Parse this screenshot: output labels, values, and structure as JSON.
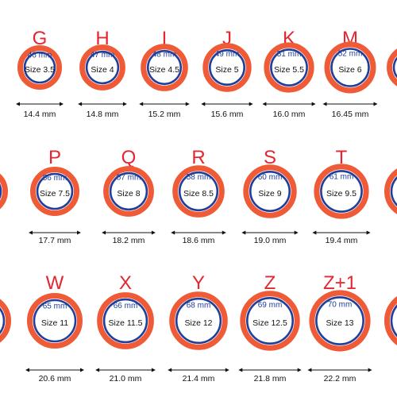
{
  "rows": [
    {
      "rings": [
        {
          "letter": "G",
          "circumference": "46 mm",
          "size": "Size 3.5",
          "diameter": "14.4 mm"
        },
        {
          "letter": "H",
          "circumference": "47 mm",
          "size": "Size 4",
          "diameter": "14.8 mm"
        },
        {
          "letter": "I",
          "circumference": "48 mm",
          "size": "Size 4.5",
          "diameter": "15.2 mm"
        },
        {
          "letter": "J",
          "circumference": "49 mm",
          "size": "Size 5",
          "diameter": "15.6 mm"
        },
        {
          "letter": "K",
          "circumference": "51 mm",
          "size": "Size 5.5",
          "diameter": "16.0 mm"
        },
        {
          "letter": "M",
          "circumference": "52 mm",
          "size": "Size 6",
          "diameter": "16.45 mm"
        }
      ]
    },
    {
      "rings": [
        {
          "letter": "P",
          "circumference": "56 mm",
          "size": "Size 7.5",
          "diameter": "17.7 mm"
        },
        {
          "letter": "Q",
          "circumference": "57 mm",
          "size": "Size 8",
          "diameter": "18.2 mm"
        },
        {
          "letter": "R",
          "circumference": "58 mm",
          "size": "Size 8.5",
          "diameter": "18.6 mm"
        },
        {
          "letter": "S",
          "circumference": "60 mm",
          "size": "Size 9",
          "diameter": "19.0 mm"
        },
        {
          "letter": "T",
          "circumference": "61 mm",
          "size": "Size 9.5",
          "diameter": "19.4 mm"
        }
      ]
    },
    {
      "rings": [
        {
          "letter": "W",
          "circumference": "65 mm",
          "size": "Size 11",
          "diameter": "20.6 mm"
        },
        {
          "letter": "X",
          "circumference": "66 mm",
          "size": "Size 11.5",
          "diameter": "21.0 mm"
        },
        {
          "letter": "Y",
          "circumference": "68 mm",
          "size": "Size 12",
          "diameter": "21.4 mm"
        },
        {
          "letter": "Z",
          "circumference": "69 mm",
          "size": "Size 12.5",
          "diameter": "21.8 mm"
        },
        {
          "letter": "Z+1",
          "circumference": "70 mm",
          "size": "Size 13",
          "diameter": "22.2 mm"
        }
      ]
    }
  ],
  "colors": {
    "ring_outer": "#ef5a37",
    "ring_inner": "#1f3f9a",
    "letter": "#e3262f"
  }
}
